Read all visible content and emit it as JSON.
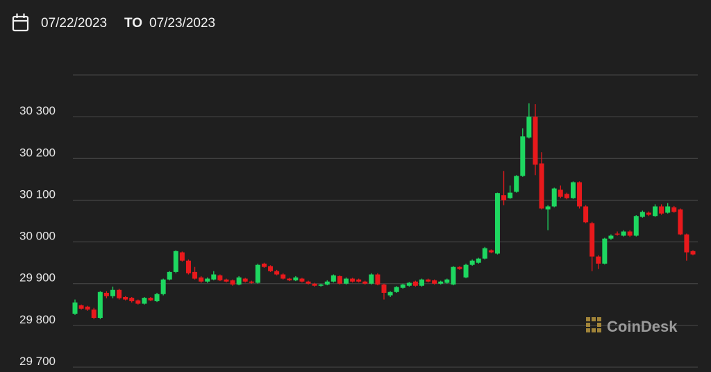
{
  "chart_data": {
    "type": "candlestick",
    "date_from": "07/22/2023",
    "date_separator": "TO",
    "date_to": "07/23/2023",
    "watermark": "CoinDesk",
    "up_color": "#1ed760",
    "down_color": "#e8191c",
    "ylim": [
      29700,
      30400
    ],
    "yticks": [
      {
        "value": 29700,
        "label": "29 700"
      },
      {
        "value": 29800,
        "label": "29 800"
      },
      {
        "value": 29900,
        "label": "29 900"
      },
      {
        "value": 30000,
        "label": "30 000"
      },
      {
        "value": 30100,
        "label": "30 100"
      },
      {
        "value": 30200,
        "label": "30 200"
      },
      {
        "value": 30300,
        "label": "30 300"
      }
    ],
    "grid": true,
    "open": [
      29828,
      29848,
      29845,
      29838,
      29818,
      29878,
      29870,
      29885,
      29868,
      29866,
      29860,
      29852,
      29866,
      29858,
      29875,
      29910,
      29928,
      29975,
      29955,
      29928,
      29915,
      29905,
      29910,
      29920,
      29910,
      29908,
      29898,
      29912,
      29905,
      29902,
      29948,
      29942,
      29930,
      29922,
      29912,
      29908,
      29912,
      29905,
      29900,
      29895,
      29898,
      29905,
      29918,
      29900,
      29912,
      29910,
      29905,
      29900,
      29922,
      29898,
      29872,
      29880,
      29890,
      29895,
      29905,
      29895,
      29910,
      29908,
      29900,
      29902,
      29898,
      29940,
      29915,
      29945,
      29950,
      29960,
      29980,
      29972,
      30112,
      30105,
      30120,
      30158,
      30250,
      30300,
      30188,
      30078,
      30085,
      30125,
      30115,
      30105,
      30143,
      30085,
      30045,
      29965,
      29948,
      30008,
      30020,
      30015,
      30025,
      30015,
      30060,
      30070,
      30062,
      30085,
      30070,
      30083,
      30078,
      30018,
      29978
    ],
    "high": [
      29862,
      29850,
      29847,
      29842,
      29882,
      29882,
      29893,
      29888,
      29870,
      29868,
      29862,
      29868,
      29868,
      29878,
      29912,
      29930,
      29980,
      29977,
      29958,
      29940,
      29918,
      29915,
      29930,
      29922,
      29912,
      29910,
      29918,
      29914,
      29907,
      29948,
      29950,
      29944,
      29933,
      29925,
      29914,
      29918,
      29914,
      29907,
      29902,
      29900,
      29908,
      29922,
      29920,
      29915,
      29914,
      29912,
      29907,
      29925,
      29925,
      29900,
      29882,
      29894,
      29900,
      29904,
      29907,
      29912,
      29912,
      29910,
      29907,
      29912,
      29942,
      29942,
      29948,
      29958,
      29962,
      29988,
      29982,
      30118,
      30170,
      30135,
      30160,
      30272,
      30332,
      30330,
      30215,
      30088,
      30130,
      30135,
      30118,
      30145,
      30145,
      30088,
      30048,
      29968,
      30010,
      30018,
      30025,
      30028,
      30028,
      30064,
      30075,
      30073,
      30090,
      30090,
      30093,
      30086,
      30080,
      30020,
      29980
    ],
    "low": [
      29825,
      29838,
      29835,
      29815,
      29815,
      29865,
      29865,
      29862,
      29860,
      29855,
      29850,
      29850,
      29858,
      29856,
      29872,
      29908,
      29925,
      29953,
      29922,
      29910,
      29902,
      29902,
      29908,
      29906,
      29903,
      29895,
      29896,
      29903,
      29900,
      29900,
      29938,
      29928,
      29920,
      29910,
      29906,
      29906,
      29903,
      29898,
      29893,
      29893,
      29896,
      29903,
      29898,
      29898,
      29903,
      29903,
      29898,
      29898,
      29896,
      29862,
      29868,
      29878,
      29888,
      29893,
      29893,
      29893,
      29903,
      29898,
      29898,
      29900,
      29896,
      29933,
      29913,
      29943,
      29948,
      29958,
      29973,
      29970,
      30088,
      30103,
      30118,
      30156,
      30248,
      30160,
      30078,
      30028,
      30083,
      30105,
      30102,
      30103,
      30080,
      30045,
      29930,
      29935,
      29946,
      30005,
      30015,
      30013,
      30012,
      30013,
      30058,
      30062,
      30060,
      30065,
      30068,
      30070,
      30016,
      29955,
      29968
    ],
    "close": [
      29855,
      29840,
      29838,
      29818,
      29880,
      29870,
      29885,
      29865,
      29862,
      29858,
      29852,
      29866,
      29860,
      29875,
      29910,
      29928,
      29978,
      29955,
      29925,
      29912,
      29905,
      29912,
      29922,
      29908,
      29905,
      29898,
      29915,
      29905,
      29902,
      29945,
      29940,
      29930,
      29922,
      29912,
      29908,
      29915,
      29905,
      29900,
      29895,
      29898,
      29905,
      29920,
      29900,
      29912,
      29905,
      29905,
      29900,
      29922,
      29898,
      29878,
      29880,
      29892,
      29898,
      29902,
      29895,
      29910,
      29905,
      29900,
      29905,
      29910,
      29940,
      29935,
      29945,
      29955,
      29960,
      29985,
      29975,
      30117,
      30100,
      30118,
      30158,
      30253,
      30300,
      30185,
      30080,
      30085,
      30128,
      30108,
      30105,
      30143,
      30085,
      30047,
      29965,
      29948,
      30008,
      30015,
      30018,
      30025,
      30015,
      30062,
      30072,
      30065,
      30085,
      30068,
      30085,
      30072,
      30018,
      29975,
      29970
    ]
  }
}
